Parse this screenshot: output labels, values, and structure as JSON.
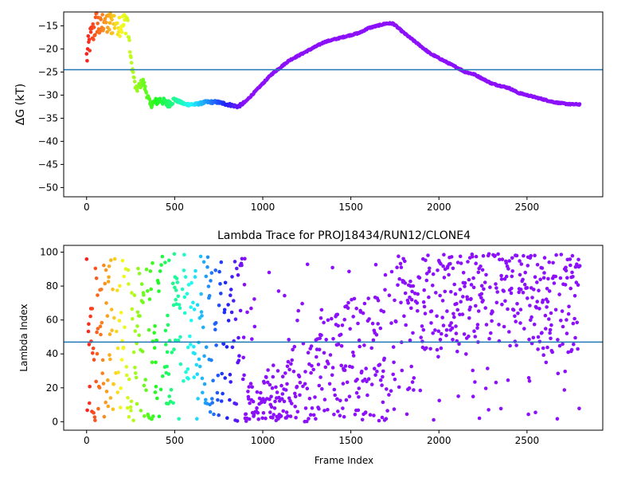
{
  "chart_data": [
    {
      "type": "scatter",
      "title": "",
      "xlabel": "",
      "ylabel": "ΔG (kT)",
      "xlim": [
        -130,
        2930
      ],
      "ylim": [
        -52,
        -12
      ],
      "xticks": [
        0,
        500,
        1000,
        1500,
        2000,
        2500
      ],
      "yticks": [
        -15,
        -20,
        -25,
        -30,
        -35,
        -40,
        -45,
        -50
      ],
      "hline": -24.5,
      "hline_color": "#1f77b4",
      "colormap": "rainbow (red at frame 0 → violet at later frames)",
      "grid": false,
      "series": [
        {
          "x": [
            0,
            20,
            40,
            60,
            80,
            100,
            120,
            150,
            180,
            210,
            230,
            250,
            280,
            320,
            360,
            420,
            460,
            500,
            560,
            620,
            680,
            740,
            800,
            860,
            900,
            950,
            1000,
            1050,
            1100,
            1150,
            1200,
            1250,
            1300,
            1350,
            1400,
            1450,
            1500,
            1550,
            1600,
            1650,
            1700,
            1740,
            1800,
            1850,
            1900,
            1950,
            2000,
            2050,
            2100,
            2150,
            2200,
            2250,
            2300,
            2350,
            2400,
            2450,
            2500,
            2550,
            2600,
            2650,
            2700,
            2750,
            2800
          ],
          "y": [
            -22,
            -18,
            -16,
            -14,
            -16,
            -13,
            -15,
            -14,
            -14,
            -15,
            -13,
            -22,
            -29,
            -27,
            -32,
            -31,
            -32,
            -31,
            -32,
            -32,
            -31.5,
            -31.5,
            -32,
            -32.5,
            -31.5,
            -29.5,
            -27.5,
            -25.5,
            -24,
            -22.5,
            -21.5,
            -20.5,
            -19.5,
            -18.5,
            -18,
            -17.5,
            -17,
            -16.5,
            -15.5,
            -15,
            -14.5,
            -14.5,
            -16.5,
            -18,
            -19.5,
            -21,
            -22,
            -23,
            -24,
            -25,
            -25.5,
            -26.5,
            -27.5,
            -28,
            -28.5,
            -29.5,
            -30,
            -30.5,
            -31,
            -31.5,
            -31.8,
            -32,
            -32
          ]
        }
      ]
    },
    {
      "type": "scatter",
      "title": "Lambda Trace for PROJ18434/RUN12/CLONE4",
      "xlabel": "Frame Index",
      "ylabel": "Lambda Index",
      "xlim": [
        -130,
        2930
      ],
      "ylim": [
        -5,
        104
      ],
      "xticks": [
        0,
        500,
        1000,
        1500,
        2000,
        2500
      ],
      "yticks": [
        0,
        20,
        40,
        60,
        80,
        100
      ],
      "hline": 47,
      "hline_color": "#1f77b4",
      "colormap": "rainbow (red at frame 0 → violet at later frames)",
      "grid": false,
      "regions": [
        {
          "x": [
            0,
            900
          ],
          "y": [
            0,
            99
          ]
        },
        {
          "x": [
            900,
            1750
          ],
          "y": [
            0,
            95
          ]
        },
        {
          "x": [
            1750,
            2800
          ],
          "y": [
            0,
            99
          ]
        }
      ]
    }
  ]
}
